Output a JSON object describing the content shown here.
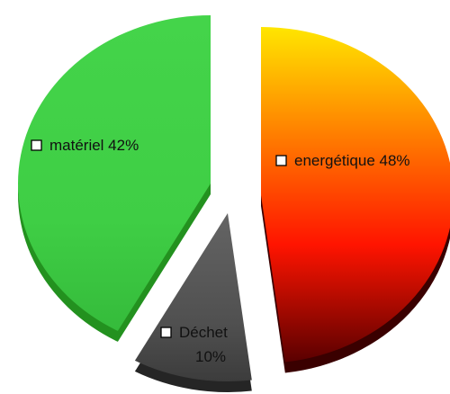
{
  "chart_data": {
    "type": "pie",
    "style": "exploded-3d",
    "slices": [
      {
        "key": "energetique",
        "label": "energétique",
        "value": 48,
        "value_text": "48%",
        "color_top": "#ffe600",
        "color_mid": "#ff1400",
        "color_bottom": "#5a0000",
        "side_color": "#3a0000"
      },
      {
        "key": "dechet",
        "label": "Déchet",
        "value": 10,
        "value_text": "10%",
        "color_top": "#646464",
        "color_mid": "#505050",
        "color_bottom": "#3c3c3c",
        "side_color": "#252525"
      },
      {
        "key": "materiel",
        "label": "matériel",
        "value": 42,
        "value_text": "42%",
        "color_top": "#44d44a",
        "color_mid": "#3fce45",
        "color_bottom": "#35bb3b",
        "side_color": "#23911f"
      }
    ],
    "legend_marker_color": "#ffffff",
    "marker_border_color": "#000000"
  }
}
